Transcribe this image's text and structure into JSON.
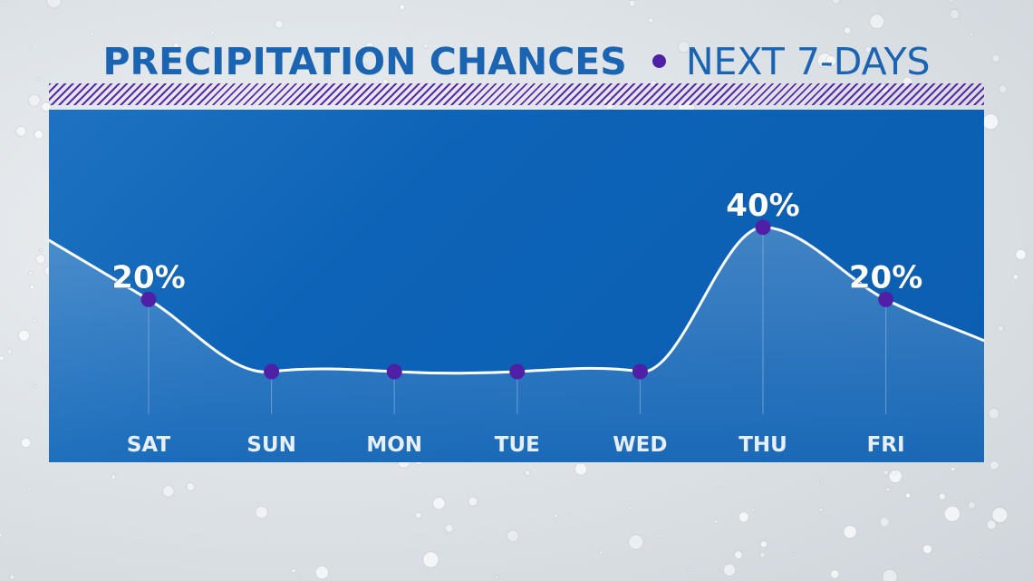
{
  "header": {
    "title": "PRECIPITATION CHANCES",
    "subtitle": "NEXT 7-DAYS"
  },
  "colors": {
    "title": "#1b64b2",
    "accent_dot": "#4f1fa6",
    "panel": "#0b5eb1",
    "curve": "#ffffff"
  },
  "chart_data": {
    "type": "line",
    "categories": [
      "SAT",
      "SUN",
      "MON",
      "TUE",
      "WED",
      "THU",
      "FRI"
    ],
    "values": [
      20,
      0,
      0,
      0,
      0,
      40,
      20
    ],
    "data_labels": [
      "20%",
      "",
      "",
      "",
      "",
      "40%",
      "20%"
    ],
    "ylim": [
      0,
      50
    ],
    "grid": false,
    "legend": "none",
    "smooth": true,
    "area_fill": true
  }
}
